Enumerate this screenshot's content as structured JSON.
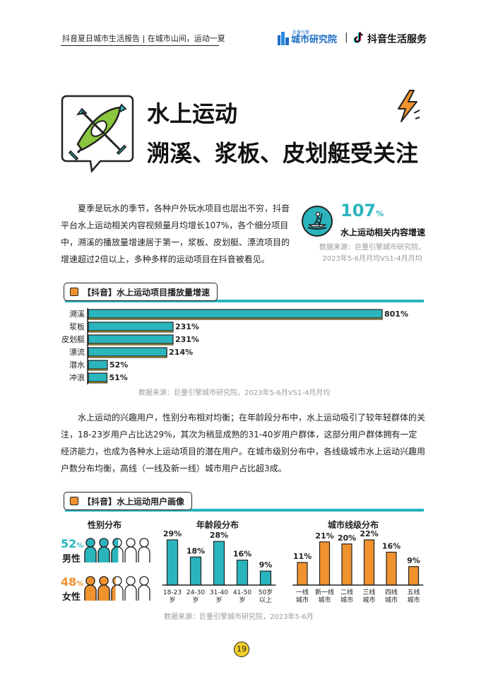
{
  "header": {
    "report_title": "抖音夏日城市生活报告 | 在城市山间，运动一夏",
    "brand_research_sub": "巨量引擎",
    "brand_research": "城市研究院",
    "brand_separator": "|",
    "brand_douyin": "抖音生活服务"
  },
  "title": {
    "line1": "水上运动",
    "line2": "溯溪、浆板、皮划艇受关注"
  },
  "intro_text": "夏季是玩水的季节，各种户外玩水项目也层出不穷，抖音平台水上运动相关内容视频量月均增长107%，各个细分项目中，溯溪的播放量增速居于第一，浆板、皮划艇、漂流项目的增速超过2倍以上，多种多样的运动项目在抖音被看见。",
  "stat": {
    "value": "107",
    "unit": "%",
    "label": "水上运动相关内容增速",
    "source_line1": "数据来源：巨量引擎城市研究院，",
    "source_line2": "2023年5-6月月均VS1-4月月均"
  },
  "section1": {
    "title": "【抖音】水上运动项目播放量增速",
    "source": "数据来源：巨量引擎城市研究院，2023年5-6月VS1-4月月均"
  },
  "body_text": "水上运动的兴趣用户，性别分布相对均衡；在年龄段分布中，水上运动吸引了较年轻群体的关注，18-23岁用户占比达29%，其次为稍显成熟的31-40岁用户群体，这部分用户群体拥有一定经济能力，也成为各种水上运动项目的潜在用户。在城市级别分布中，各线级城市水上运动兴趣用户数分布均衡，高线（一线及新一线）城市用户占比超3成。",
  "section2": {
    "title": "【抖音】水上运动用户画像",
    "gender_title": "性别分布",
    "male_pct": "52",
    "male_label": "男性",
    "female_pct": "48",
    "female_label": "女性",
    "pct_sign": "%",
    "age_title": "年龄段分布",
    "city_title": "城市线级分布",
    "source": "数据来源：巨量引擎城市研究院，2023年5-6月"
  },
  "page_number": "19",
  "colors": {
    "teal": "#2ab5bd",
    "orange": "#f0922e",
    "yellow": "#f1cd2a",
    "kayak_green": "#8cc63f",
    "grey_source": "#9a9a9a"
  },
  "icons": [
    "kayak-icon",
    "lightning-icon",
    "paddleboard-icon",
    "person-icon"
  ],
  "chart_data": [
    {
      "type": "bar",
      "orientation": "horizontal",
      "categories": [
        "溯溪",
        "浆板",
        "皮划艇",
        "漂流",
        "潜水",
        "冲浪"
      ],
      "values": [
        801,
        231,
        231,
        214,
        52,
        51
      ],
      "labels": [
        "801%",
        "231%",
        "231%",
        "214%",
        "52%",
        "51%"
      ],
      "unit": "%",
      "xlim": [
        0,
        801
      ]
    },
    {
      "type": "bar",
      "title": "年龄段分布",
      "categories": [
        "18-23岁",
        "24-30岁",
        "31-40岁",
        "41-50岁",
        "50岁以上"
      ],
      "tick_labels": [
        [
          "18-23",
          "岁"
        ],
        [
          "24-30",
          "岁"
        ],
        [
          "31-40",
          "岁"
        ],
        [
          "41-50",
          "岁"
        ],
        [
          "50岁",
          "以上"
        ]
      ],
      "values": [
        29,
        18,
        28,
        16,
        9
      ],
      "labels": [
        "29%",
        "18%",
        "28%",
        "16%",
        "9%"
      ],
      "ylim": [
        0,
        29
      ]
    },
    {
      "type": "bar",
      "title": "城市线级分布",
      "categories": [
        "一线城市",
        "新一线城市",
        "二线城市",
        "三线城市",
        "四线城市",
        "五线城市"
      ],
      "tick_labels": [
        [
          "一线",
          "城市"
        ],
        [
          "新一线",
          "城市"
        ],
        [
          "二线",
          "城市"
        ],
        [
          "三线",
          "城市"
        ],
        [
          "四线",
          "城市"
        ],
        [
          "五线",
          "城市"
        ]
      ],
      "values": [
        11,
        21,
        20,
        22,
        16,
        9
      ],
      "labels": [
        "11%",
        "21%",
        "20%",
        "22%",
        "16%",
        "9%"
      ],
      "ylim": [
        0,
        22
      ]
    },
    {
      "type": "pictogram",
      "title": "性别分布",
      "series": [
        {
          "name": "男性",
          "value": 52
        },
        {
          "name": "女性",
          "value": 48
        }
      ]
    }
  ]
}
